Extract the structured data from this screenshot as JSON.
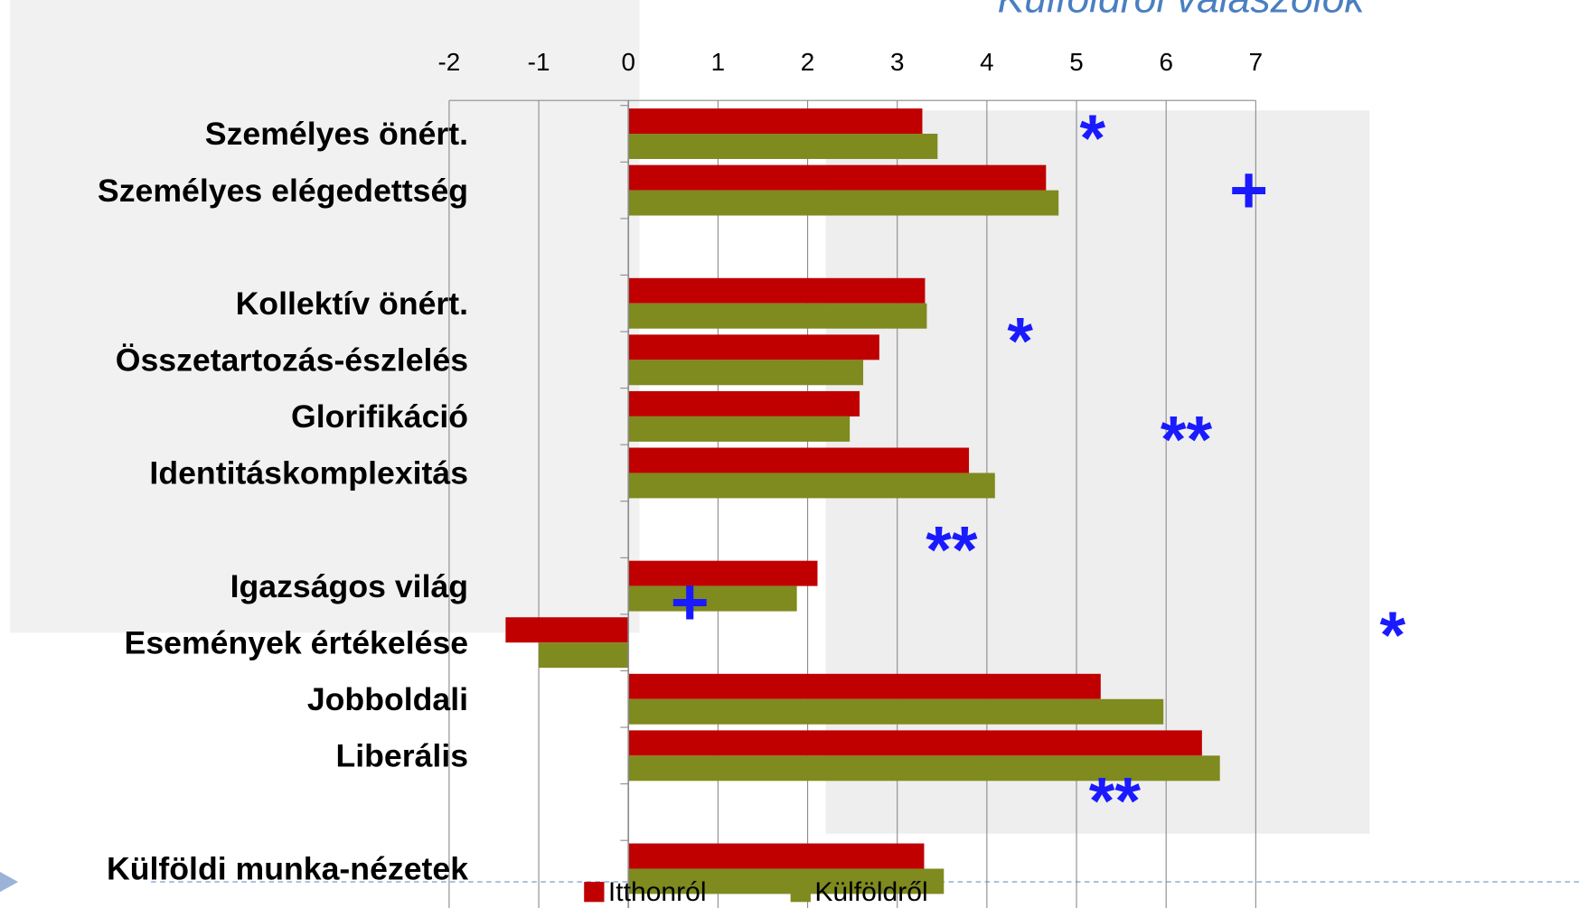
{
  "chart_data": {
    "type": "hbar",
    "title": "Külföldről válaszolók",
    "categories": [
      "Személyes önért.",
      "Személyes elégedettség",
      null,
      "Kollektív önért.",
      "Összetartozás-észlelés",
      "Glorifikáció",
      "Identitáskomplexitás",
      null,
      "Igazságos világ",
      "Események értékelése",
      "Jobboldali",
      "Liberális",
      null,
      "Külföldi munka-nézetek"
    ],
    "series": [
      {
        "name": "Itthonról",
        "color": "#c00000",
        "values": [
          3.28,
          4.66,
          null,
          3.31,
          2.8,
          2.58,
          3.8,
          null,
          2.11,
          -1.37,
          5.27,
          6.4,
          null,
          3.3
        ]
      },
      {
        "name": "Külföldről",
        "color": "#7f8a1f",
        "values": [
          3.45,
          4.8,
          null,
          3.33,
          2.62,
          2.47,
          4.09,
          null,
          1.88,
          -1.0,
          5.97,
          6.6,
          null,
          3.52
        ]
      }
    ],
    "xlim": [
      -2,
      7
    ],
    "xticks": [
      -2,
      -1,
      0,
      1,
      2,
      3,
      4,
      5,
      6,
      7
    ],
    "grid": true,
    "annotations": [
      "*",
      "+",
      "*",
      "**",
      "**",
      "+",
      "*",
      "**"
    ]
  }
}
